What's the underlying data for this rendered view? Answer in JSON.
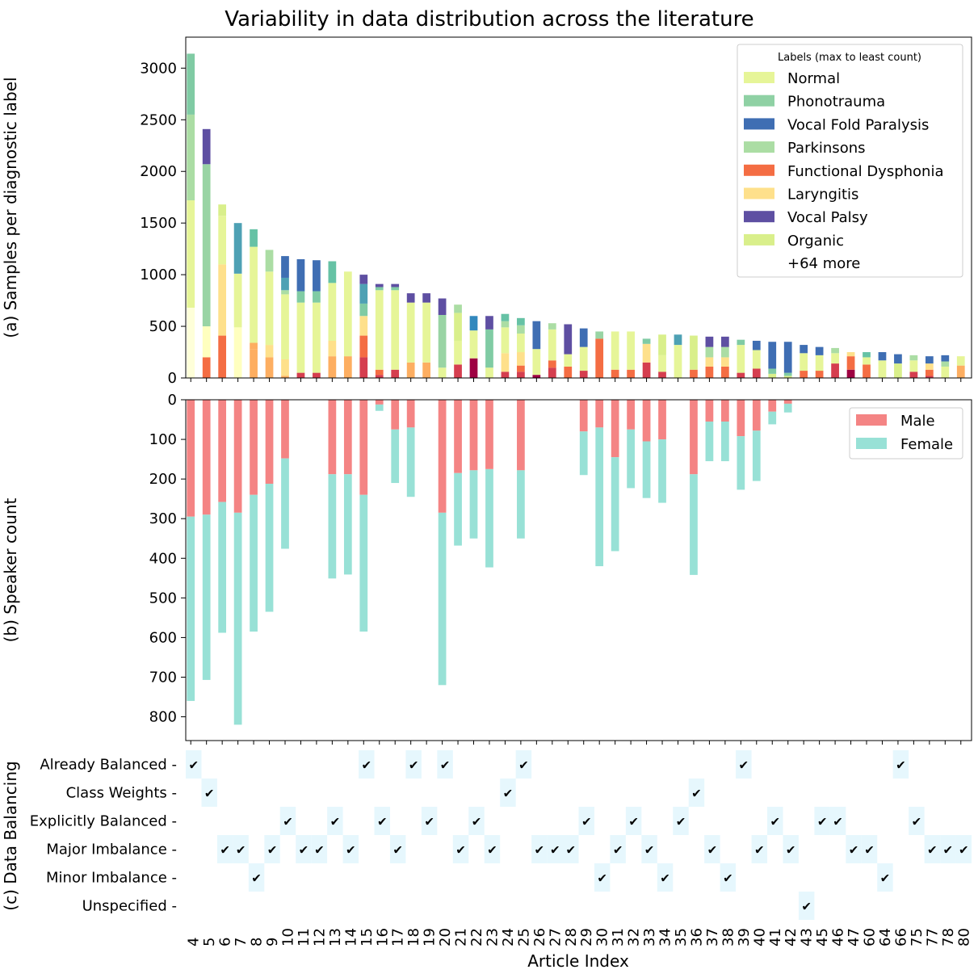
{
  "chart_data": [
    {
      "panel": "a",
      "type": "bar",
      "title": "Variability in data distribution across the literature",
      "ylabel": "(a) Samples per diagnostic label",
      "ylim": [
        0,
        3300
      ],
      "yticks": [
        0,
        500,
        1000,
        1500,
        2000,
        2500,
        3000
      ],
      "stacked": true,
      "categories": [
        "4",
        "5",
        "6",
        "7",
        "8",
        "9",
        "10",
        "11",
        "12",
        "13",
        "14",
        "15",
        "16",
        "17",
        "18",
        "19",
        "20",
        "21",
        "22",
        "23",
        "24",
        "25",
        "26",
        "27",
        "28",
        "29",
        "30",
        "31",
        "32",
        "33",
        "34",
        "35",
        "36",
        "37",
        "38",
        "39",
        "40",
        "41",
        "42",
        "43",
        "45",
        "46",
        "47",
        "60",
        "64",
        "66",
        "75",
        "77",
        "78",
        "80"
      ],
      "stacks": [
        [
          [
            680,
            "#feffd9"
          ],
          [
            1040,
            "#e6f598"
          ],
          [
            830,
            "#abdda4"
          ],
          [
            590,
            "#80cba4"
          ]
        ],
        [
          [
            200,
            "#f46d43"
          ],
          [
            300,
            "#ffffbf"
          ],
          [
            1570,
            "#99d4a4"
          ],
          [
            340,
            "#5e4fa2"
          ]
        ],
        [
          [
            410,
            "#f46d43"
          ],
          [
            690,
            "#fee08b"
          ],
          [
            470,
            "#e6f598"
          ],
          [
            110,
            "#d9ef8b"
          ]
        ],
        [
          [
            490,
            "#ffffbf"
          ],
          [
            520,
            "#e6f598"
          ],
          [
            490,
            "#4ea1b4"
          ]
        ],
        [
          [
            280,
            "#fdae61"
          ],
          [
            60,
            "#fdae61"
          ],
          [
            930,
            "#e6f598"
          ],
          [
            170,
            "#66c2a5"
          ]
        ],
        [
          [
            200,
            "#fdae61"
          ],
          [
            120,
            "#fee08b"
          ],
          [
            710,
            "#e6f598"
          ],
          [
            210,
            "#abdda4"
          ]
        ],
        [
          [
            20,
            "#fdae61"
          ],
          [
            160,
            "#fee08b"
          ],
          [
            630,
            "#e6f598"
          ],
          [
            40,
            "#abdda4"
          ],
          [
            120,
            "#4ea1b4"
          ],
          [
            210,
            "#3f6eb3"
          ]
        ],
        [
          [
            50,
            "#d53e4f"
          ],
          [
            680,
            "#e6f598"
          ],
          [
            110,
            "#80cba4"
          ],
          [
            310,
            "#3f6eb3"
          ]
        ],
        [
          [
            50,
            "#d53e4f"
          ],
          [
            680,
            "#e6f598"
          ],
          [
            110,
            "#80cba4"
          ],
          [
            300,
            "#3f6eb3"
          ]
        ],
        [
          [
            210,
            "#fdae61"
          ],
          [
            150,
            "#fee08b"
          ],
          [
            560,
            "#e6f598"
          ],
          [
            210,
            "#66c2a5"
          ]
        ],
        [
          [
            210,
            "#fdae61"
          ],
          [
            820,
            "#e6f598"
          ]
        ],
        [
          [
            200,
            "#d53e4f"
          ],
          [
            210,
            "#f46d43"
          ],
          [
            190,
            "#fee08b"
          ],
          [
            120,
            "#80cba4"
          ],
          [
            190,
            "#4ea1b4"
          ],
          [
            90,
            "#5e4fa2"
          ]
        ],
        [
          [
            30,
            "#d53e4f"
          ],
          [
            50,
            "#f46d43"
          ],
          [
            770,
            "#e6f598"
          ],
          [
            30,
            "#80cba4"
          ],
          [
            30,
            "#5e4fa2"
          ]
        ],
        [
          [
            80,
            "#d53e4f"
          ],
          [
            770,
            "#e6f598"
          ],
          [
            30,
            "#80cba4"
          ],
          [
            30,
            "#5e4fa2"
          ]
        ],
        [
          [
            150,
            "#fdae61"
          ],
          [
            580,
            "#e6f598"
          ],
          [
            90,
            "#5e4fa2"
          ]
        ],
        [
          [
            150,
            "#fdae61"
          ],
          [
            580,
            "#e6f598"
          ],
          [
            90,
            "#5e4fa2"
          ]
        ],
        [
          [
            100,
            "#e6f598"
          ],
          [
            510,
            "#99d4a4"
          ],
          [
            160,
            "#5e4fa2"
          ]
        ],
        [
          [
            130,
            "#d53e4f"
          ],
          [
            230,
            "#e6f598"
          ],
          [
            270,
            "#d9ef8b"
          ],
          [
            80,
            "#abdda4"
          ]
        ],
        [
          [
            190,
            "#9e0142"
          ],
          [
            270,
            "#e6f598"
          ],
          [
            140,
            "#3288bd"
          ]
        ],
        [
          [
            100,
            "#e6f598"
          ],
          [
            370,
            "#80cba4"
          ],
          [
            130,
            "#5e4fa2"
          ]
        ],
        [
          [
            60,
            "#d53e4f"
          ],
          [
            180,
            "#fee08b"
          ],
          [
            250,
            "#e6f598"
          ],
          [
            60,
            "#abdda4"
          ],
          [
            70,
            "#66c2a5"
          ]
        ],
        [
          [
            60,
            "#d53e4f"
          ],
          [
            60,
            "#f46d43"
          ],
          [
            130,
            "#fee08b"
          ],
          [
            180,
            "#e6f598"
          ],
          [
            80,
            "#abdda4"
          ],
          [
            70,
            "#66c2a5"
          ]
        ],
        [
          [
            30,
            "#9e0142"
          ],
          [
            250,
            "#e6f598"
          ],
          [
            270,
            "#3f6eb3"
          ]
        ],
        [
          [
            100,
            "#d53e4f"
          ],
          [
            70,
            "#f46d43"
          ],
          [
            300,
            "#e6f598"
          ],
          [
            60,
            "#abdda4"
          ]
        ],
        [
          [
            110,
            "#f46d43"
          ],
          [
            120,
            "#e6f598"
          ],
          [
            290,
            "#5e4fa2"
          ]
        ],
        [
          [
            70,
            "#d53e4f"
          ],
          [
            230,
            "#e6f598"
          ],
          [
            180,
            "#3f6eb3"
          ]
        ],
        [
          [
            380,
            "#f46d43"
          ],
          [
            70,
            "#99d4a4"
          ]
        ],
        [
          [
            80,
            "#f46d43"
          ],
          [
            370,
            "#e6f598"
          ]
        ],
        [
          [
            80,
            "#f46d43"
          ],
          [
            370,
            "#e6f598"
          ]
        ],
        [
          [
            150,
            "#d53e4f"
          ],
          [
            180,
            "#fee08b"
          ],
          [
            50,
            "#80cba4"
          ]
        ],
        [
          [
            60,
            "#d53e4f"
          ],
          [
            160,
            "#e6f598"
          ],
          [
            200,
            "#d9ef8b"
          ]
        ],
        [
          [
            320,
            "#e6f598"
          ],
          [
            100,
            "#4ea1b4"
          ]
        ],
        [
          [
            80,
            "#f46d43"
          ],
          [
            330,
            "#d9ef8b"
          ]
        ],
        [
          [
            110,
            "#f46d43"
          ],
          [
            90,
            "#fee08b"
          ],
          [
            100,
            "#abdda4"
          ],
          [
            100,
            "#5e4fa2"
          ]
        ],
        [
          [
            110,
            "#f46d43"
          ],
          [
            90,
            "#fee08b"
          ],
          [
            100,
            "#abdda4"
          ],
          [
            100,
            "#5e4fa2"
          ]
        ],
        [
          [
            50,
            "#d53e4f"
          ],
          [
            270,
            "#e6f598"
          ],
          [
            50,
            "#80cba4"
          ]
        ],
        [
          [
            90,
            "#d53e4f"
          ],
          [
            180,
            "#e6f598"
          ],
          [
            90,
            "#3f6eb3"
          ]
        ],
        [
          [
            40,
            "#d9ef8b"
          ],
          [
            50,
            "#80cba4"
          ],
          [
            260,
            "#3f6eb3"
          ]
        ],
        [
          [
            20,
            "#d9ef8b"
          ],
          [
            30,
            "#80cba4"
          ],
          [
            300,
            "#3f6eb3"
          ]
        ],
        [
          [
            70,
            "#f46d43"
          ],
          [
            170,
            "#e6f598"
          ],
          [
            80,
            "#3f6eb3"
          ]
        ],
        [
          [
            70,
            "#f46d43"
          ],
          [
            150,
            "#e6f598"
          ],
          [
            80,
            "#3f6eb3"
          ]
        ],
        [
          [
            140,
            "#d53e4f"
          ],
          [
            100,
            "#e6f598"
          ],
          [
            50,
            "#abdda4"
          ]
        ],
        [
          [
            80,
            "#9e0142"
          ],
          [
            130,
            "#f46d43"
          ],
          [
            40,
            "#fee08b"
          ]
        ],
        [
          [
            130,
            "#f46d43"
          ],
          [
            70,
            "#e6f598"
          ],
          [
            50,
            "#66c2a5"
          ]
        ],
        [
          [
            170,
            "#e6f598"
          ],
          [
            80,
            "#3f6eb3"
          ]
        ],
        [
          [
            140,
            "#d9ef8b"
          ],
          [
            90,
            "#3f6eb3"
          ]
        ],
        [
          [
            60,
            "#d53e4f"
          ],
          [
            110,
            "#e6f598"
          ],
          [
            50,
            "#abdda4"
          ]
        ],
        [
          [
            20,
            "#d53e4f"
          ],
          [
            60,
            "#f46d43"
          ],
          [
            60,
            "#fee08b"
          ],
          [
            70,
            "#3f6eb3"
          ]
        ],
        [
          [
            110,
            "#e6f598"
          ],
          [
            50,
            "#abdda4"
          ],
          [
            60,
            "#3f6eb3"
          ]
        ],
        [
          [
            120,
            "#fdae61"
          ],
          [
            90,
            "#e6f598"
          ]
        ]
      ],
      "legend": {
        "title": "Labels (max to least count)",
        "position": "top-right",
        "entries": [
          {
            "name": "Normal",
            "color": "#e6f598"
          },
          {
            "name": "Phonotrauma",
            "color": "#8fd1a4"
          },
          {
            "name": "Vocal Fold Paralysis",
            "color": "#3f6eb3"
          },
          {
            "name": "Parkinsons",
            "color": "#abdda4"
          },
          {
            "name": "Functional Dysphonia",
            "color": "#f46d43"
          },
          {
            "name": "Laryngitis",
            "color": "#fee08b"
          },
          {
            "name": "Vocal Palsy",
            "color": "#5e4fa2"
          },
          {
            "name": "Organic",
            "color": "#d9ef8b"
          }
        ],
        "more": "+64 more"
      }
    },
    {
      "panel": "b",
      "type": "bar",
      "ylabel": "(b) Speaker count",
      "ylim": [
        0,
        860
      ],
      "yticks": [
        0,
        100,
        200,
        300,
        400,
        500,
        600,
        700,
        800
      ],
      "y_inverted": true,
      "stacked": true,
      "series": [
        {
          "name": "Male",
          "color": "#f48484",
          "values": [
            295,
            290,
            258,
            285,
            240,
            212,
            148,
            0,
            0,
            188,
            188,
            240,
            12,
            75,
            70,
            0,
            285,
            185,
            178,
            175,
            0,
            178,
            0,
            0,
            0,
            80,
            70,
            145,
            75,
            105,
            100,
            0,
            188,
            55,
            55,
            92,
            78,
            30,
            10,
            0,
            0,
            0,
            0,
            0,
            0,
            0,
            0,
            0,
            0,
            0
          ]
        },
        {
          "name": "Female",
          "color": "#98e1d6",
          "values": [
            465,
            417,
            330,
            535,
            345,
            323,
            228,
            0,
            0,
            263,
            253,
            345,
            16,
            135,
            175,
            0,
            435,
            183,
            172,
            248,
            0,
            172,
            0,
            0,
            0,
            110,
            350,
            237,
            148,
            143,
            160,
            0,
            254,
            100,
            100,
            135,
            127,
            32,
            22,
            0,
            0,
            0,
            0,
            0,
            0,
            0,
            0,
            0,
            0,
            0
          ]
        }
      ],
      "legend": {
        "position": "top-right"
      }
    },
    {
      "panel": "c",
      "type": "table",
      "ylabel": "(c) Data Balancing",
      "xlabel": "Article Index",
      "rows": [
        "Already Balanced",
        "Class Weights",
        "Explicitly Balanced",
        "Major Imbalance",
        "Minor Imbalance",
        "Unspecified"
      ],
      "mark": "✔",
      "row_of_article": [
        0,
        1,
        3,
        3,
        4,
        3,
        2,
        3,
        3,
        2,
        3,
        0,
        2,
        3,
        0,
        2,
        0,
        3,
        2,
        3,
        1,
        0,
        3,
        3,
        3,
        2,
        4,
        3,
        2,
        3,
        4,
        2,
        1,
        3,
        4,
        0,
        3,
        2,
        3,
        5,
        2,
        2,
        3,
        3,
        4,
        0,
        2,
        3,
        3,
        3
      ]
    }
  ]
}
